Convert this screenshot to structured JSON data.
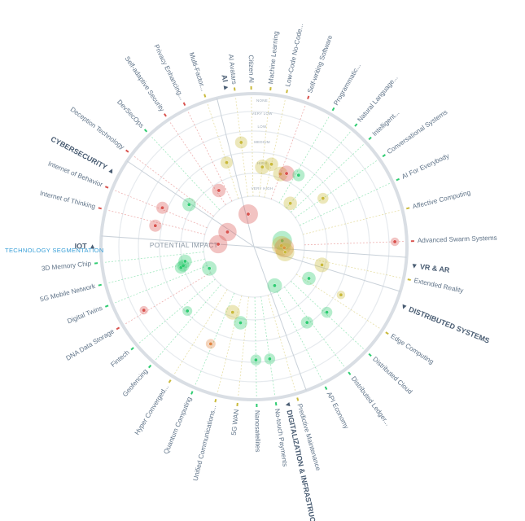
{
  "colors": {
    "outer_ring": "#d9dee4",
    "ring": "#e6eaee",
    "segment_line": "#c9d1d9",
    "label_text": "#5f7388",
    "segment_text": "#4a5d73",
    "accent_blue": "#3aa0d8",
    "blob_red": "#d9534f",
    "blob_orange": "#e0833f",
    "blob_yellow": "#c9b93a",
    "blob_green": "#2ecc71"
  },
  "left_title": "TECHNOLOGY SEGMENTATION",
  "impact_title": "POTENTIAL IMPACT",
  "rings": [
    "NONE",
    "VERY LOW",
    "LOW",
    "MEDIUM",
    "HIGH",
    "VERY HIGH"
  ],
  "segments": [
    {
      "name": "AI",
      "angle": -100
    },
    {
      "name": "CYBERSECURITY",
      "angle": -152
    },
    {
      "name": "IOT",
      "angle": 180
    },
    {
      "name": "VR & AR",
      "angle": 7
    },
    {
      "name": "DISTRIBUTED SYSTEMS",
      "angle": 22
    },
    {
      "name": "DIGITALIZATION & INFRASTRUCTURE",
      "angle": 78
    }
  ],
  "technologies": [
    {
      "name": "AI Avatars",
      "angle": -97,
      "color": "#c9b93a"
    },
    {
      "name": "Citizen AI",
      "angle": -91,
      "color": "#c9b93a"
    },
    {
      "name": "Machine Learning",
      "angle": -84,
      "color": "#c9b93a"
    },
    {
      "name": "Low-Code No-Code...",
      "angle": -78,
      "color": "#c9b93a"
    },
    {
      "name": "Self-writing Software",
      "angle": -70,
      "color": "#d9534f"
    },
    {
      "name": "Programmatic...",
      "angle": -60,
      "color": "#2ecc71"
    },
    {
      "name": "Natural Language...",
      "angle": -50,
      "color": "#2ecc71"
    },
    {
      "name": "Intelligent...",
      "angle": -43,
      "color": "#2ecc71"
    },
    {
      "name": "Conversational Systems",
      "angle": -35,
      "color": "#2ecc71"
    },
    {
      "name": "AI For Everybody",
      "angle": -25,
      "color": "#2ecc71"
    },
    {
      "name": "Affective Computing",
      "angle": -14,
      "color": "#c9b93a"
    },
    {
      "name": "Advanced Swarm Systems",
      "angle": -2,
      "color": "#d9534f"
    },
    {
      "name": "Extended Reality",
      "angle": 12,
      "color": "#c9b93a"
    },
    {
      "name": "Edge Computing",
      "angle": 33,
      "color": "#c9b93a"
    },
    {
      "name": "Distributed Cloud",
      "angle": 43,
      "color": "#2ecc71"
    },
    {
      "name": "Distributed Ledger...",
      "angle": 53,
      "color": "#2ecc71"
    },
    {
      "name": "API Economy",
      "angle": 63,
      "color": "#2ecc71"
    },
    {
      "name": "Predictive Maintenance",
      "angle": 74,
      "color": "#c9b93a"
    },
    {
      "name": "No-touch Payments",
      "angle": 82,
      "color": "#2ecc71"
    },
    {
      "name": "Nanosatellites",
      "angle": 89,
      "color": "#2ecc71"
    },
    {
      "name": "5G WAN",
      "angle": 96,
      "color": "#c9b93a"
    },
    {
      "name": "Unified Communications...",
      "angle": 104,
      "color": "#c9b93a"
    },
    {
      "name": "Quantum Computing",
      "angle": 113,
      "color": "#2ecc71"
    },
    {
      "name": "Hyper Converged...",
      "angle": 122,
      "color": "#c9b93a"
    },
    {
      "name": "Geofencing",
      "angle": 131,
      "color": "#2ecc71"
    },
    {
      "name": "Fintech",
      "angle": 140,
      "color": "#2ecc71"
    },
    {
      "name": "DNA Data Storage",
      "angle": 149,
      "color": "#d9534f"
    },
    {
      "name": "Digital Twins",
      "angle": 158,
      "color": "#2ecc71"
    },
    {
      "name": "5G Mobile Network",
      "angle": 166,
      "color": "#2ecc71"
    },
    {
      "name": "3D Memory Chip",
      "angle": 174,
      "color": "#2ecc71"
    },
    {
      "name": "Internet of Thinking",
      "angle": -166,
      "color": "#d9534f"
    },
    {
      "name": "Internet of Behavior",
      "angle": -158,
      "color": "#d9534f"
    },
    {
      "name": "Deception Technology",
      "angle": -143,
      "color": "#d9534f"
    },
    {
      "name": "DevSecOps",
      "angle": -133,
      "color": "#2ecc71"
    },
    {
      "name": "Self-adaptive Security",
      "angle": -124,
      "color": "#d9534f"
    },
    {
      "name": "Privacy Enhancing...",
      "angle": -116,
      "color": "#d9534f"
    },
    {
      "name": "Multi-Factor...",
      "angle": -108,
      "color": "#c9b93a"
    }
  ],
  "blips": [
    {
      "angle": -97,
      "level": 0.7,
      "size": 1.0,
      "color": "#c9b93a"
    },
    {
      "angle": -84,
      "level": 0.52,
      "size": 1.2,
      "color": "#c9b93a"
    },
    {
      "angle": -78,
      "level": 0.55,
      "size": 1.1,
      "color": "#c9b93a"
    },
    {
      "angle": -70,
      "level": 0.5,
      "size": 1.2,
      "color": "#c9b93a"
    },
    {
      "angle": -66,
      "level": 0.52,
      "size": 1.3,
      "color": "#d9534f"
    },
    {
      "angle": -58,
      "level": 0.55,
      "size": 1.0,
      "color": "#2ecc71"
    },
    {
      "angle": -50,
      "level": 0.35,
      "size": 1.1,
      "color": "#c9b93a"
    },
    {
      "angle": -35,
      "level": 0.55,
      "size": 0.9,
      "color": "#c9b93a"
    },
    {
      "angle": -2,
      "level": 0.96,
      "size": 0.7,
      "color": "#d9534f"
    },
    {
      "angle": -12,
      "level": 0.15,
      "size": 1.6,
      "color": "#2ecc71"
    },
    {
      "angle": -2,
      "level": 0.14,
      "size": 1.6,
      "color": "#c9b93a"
    },
    {
      "angle": 2,
      "level": 0.16,
      "size": 1.6,
      "color": "#e0833f"
    },
    {
      "angle": 10,
      "level": 0.17,
      "size": 1.5,
      "color": "#c9b93a"
    },
    {
      "angle": 15,
      "level": 0.45,
      "size": 1.2,
      "color": "#c9b93a"
    },
    {
      "angle": 30,
      "level": 0.4,
      "size": 1.1,
      "color": "#2ecc71"
    },
    {
      "angle": 29,
      "level": 0.66,
      "size": 0.7,
      "color": "#c9b93a"
    },
    {
      "angle": 42,
      "level": 0.65,
      "size": 0.9,
      "color": "#2ecc71"
    },
    {
      "angle": 55,
      "level": 0.61,
      "size": 1.0,
      "color": "#2ecc71"
    },
    {
      "angle": 62,
      "level": 0.26,
      "size": 1.2,
      "color": "#2ecc71"
    },
    {
      "angle": 82,
      "level": 0.76,
      "size": 0.9,
      "color": "#2ecc71"
    },
    {
      "angle": 89,
      "level": 0.76,
      "size": 0.9,
      "color": "#2ecc71"
    },
    {
      "angle": 100,
      "level": 0.5,
      "size": 1.1,
      "color": "#2ecc71"
    },
    {
      "angle": 108,
      "level": 0.44,
      "size": 1.2,
      "color": "#c9b93a"
    },
    {
      "angle": 114,
      "level": 0.71,
      "size": 0.8,
      "color": "#e0833f"
    },
    {
      "angle": 136,
      "level": 0.61,
      "size": 0.8,
      "color": "#2ecc71"
    },
    {
      "angle": 150,
      "level": 0.86,
      "size": 0.7,
      "color": "#d9534f"
    },
    {
      "angle": 154,
      "level": 0.3,
      "size": 1.2,
      "color": "#2ecc71"
    },
    {
      "angle": 164,
      "level": 0.49,
      "size": 1.0,
      "color": "#2ecc71"
    },
    {
      "angle": 165,
      "level": 0.47,
      "size": 1.0,
      "color": "#2ecc71"
    },
    {
      "angle": 168,
      "level": 0.45,
      "size": 1.1,
      "color": "#2ecc71"
    },
    {
      "angle": -176,
      "level": 0.2,
      "size": 1.5,
      "color": "#d9534f"
    },
    {
      "angle": -168,
      "level": 0.67,
      "size": 1.0,
      "color": "#d9534f"
    },
    {
      "angle": -157,
      "level": 0.66,
      "size": 1.0,
      "color": "#d9534f"
    },
    {
      "angle": -151,
      "level": 0.16,
      "size": 1.5,
      "color": "#d9534f"
    },
    {
      "angle": -147,
      "level": 0.5,
      "size": 1.1,
      "color": "#2ecc71"
    },
    {
      "angle": -122,
      "level": 0.42,
      "size": 1.1,
      "color": "#d9534f"
    },
    {
      "angle": -108,
      "level": 0.58,
      "size": 1.0,
      "color": "#c9b93a"
    },
    {
      "angle": -100,
      "level": 0.18,
      "size": 1.6,
      "color": "#d9534f"
    }
  ]
}
